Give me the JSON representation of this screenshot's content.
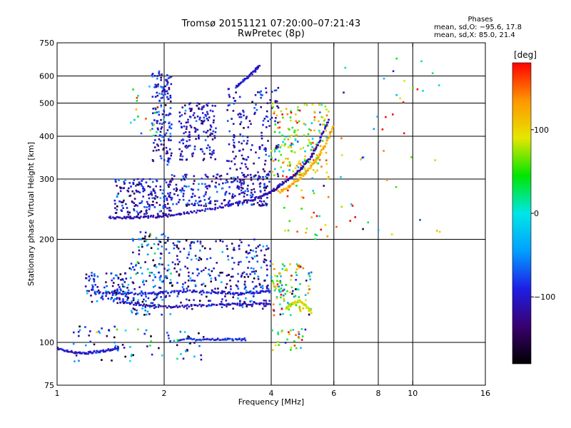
{
  "header": {
    "title_line1": "Tromsø 20151121 07:20:00–07:21:43",
    "title_line2": "RwPretec (8p)"
  },
  "phases_info": {
    "title": "Phases",
    "line1": "mean, sd,O: −95.6, 17.8",
    "line2": "mean, sd,X:  85.0, 21.4"
  },
  "colorbar": {
    "title": "[deg]",
    "ticks": [
      {
        "value": 100,
        "label": "100"
      },
      {
        "value": 0,
        "label": "0"
      },
      {
        "value": -100,
        "label": "−100"
      }
    ],
    "range": [
      -180,
      180
    ],
    "colors": [
      "#000000",
      "#3a0070",
      "#1e1ee6",
      "#00a0ff",
      "#00e6e6",
      "#00e600",
      "#e6e600",
      "#ff9600",
      "#ff0000"
    ]
  },
  "chart_data": {
    "type": "scatter",
    "title": "Tromsø 20151121 07:20:00–07:21:43",
    "subtitle": "RwPretec (8p)",
    "xlabel": "Frequency [MHz]",
    "ylabel": "Stationary phase Virtual Height [km]",
    "x_scale": "log",
    "y_scale": "log",
    "xlim": [
      1,
      16
    ],
    "ylim": [
      75,
      750
    ],
    "x_ticks": [
      1,
      2,
      4,
      6,
      8,
      10,
      16
    ],
    "x_tick_labels": [
      "1",
      "2",
      "4",
      "6",
      "8",
      "10",
      "16"
    ],
    "y_ticks": [
      75,
      100,
      200,
      300,
      400,
      500,
      600,
      750
    ],
    "y_tick_labels": [
      "75",
      "100",
      "200",
      "300",
      "400",
      "500",
      "600",
      "750"
    ],
    "grid": true,
    "color_by": "phase [deg]",
    "traces": [
      {
        "x": [
          1.4,
          1.55,
          1.7,
          1.9,
          2.1,
          2.4,
          2.8,
          3.2,
          3.6,
          3.9,
          4.1,
          4.3,
          4.6,
          4.9,
          5.2,
          5.5,
          5.8
        ],
        "y": [
          232,
          231,
          232,
          233,
          235,
          240,
          247,
          255,
          263,
          272,
          280,
          292,
          305,
          325,
          350,
          390,
          450
        ],
        "phase": -110
      },
      {
        "x": [
          4.2,
          4.5,
          4.8,
          5.1,
          5.4,
          5.7,
          6.0
        ],
        "y": [
          275,
          285,
          300,
          320,
          345,
          380,
          430
        ],
        "phase": 120
      },
      {
        "x": [
          1.3,
          1.5,
          1.8,
          2.0,
          2.4,
          2.8,
          3.2,
          3.6,
          4.0
        ],
        "y": [
          140,
          139,
          139,
          140,
          141,
          140,
          139,
          140,
          141
        ],
        "phase": -95
      },
      {
        "x": [
          1.6,
          1.8,
          2.1,
          2.4,
          2.8,
          3.2,
          3.6,
          4.0
        ],
        "y": [
          130,
          128,
          127,
          128,
          129,
          129,
          130,
          130
        ],
        "phase": -105
      },
      {
        "x": [
          2.2,
          2.5,
          2.8,
          3.1,
          3.4
        ],
        "y": [
          102,
          102,
          102,
          102,
          102
        ],
        "phase": -85
      },
      {
        "x": [
          1.0,
          1.1,
          1.2,
          1.3,
          1.4,
          1.5
        ],
        "y": [
          96,
          94,
          93,
          94,
          95,
          97
        ],
        "phase": -100
      },
      {
        "x": [
          3.2,
          3.4,
          3.6,
          3.7
        ],
        "y": [
          560,
          590,
          620,
          640
        ],
        "phase": -100
      },
      {
        "x": [
          4.4,
          4.6,
          4.8,
          5.0,
          5.2
        ],
        "y": [
          125,
          130,
          132,
          128,
          122
        ],
        "phase": 90
      }
    ]
  },
  "scatter_clusters": [
    {
      "fx": [
        1.85,
        2.1
      ],
      "h": [
        330,
        620
      ],
      "n": 150,
      "ph": -100,
      "sd": 25
    },
    {
      "fx": [
        2.2,
        2.8
      ],
      "h": [
        340,
        500
      ],
      "n": 150,
      "ph": -100,
      "sd": 25
    },
    {
      "fx": [
        1.45,
        2.1
      ],
      "h": [
        236,
        300
      ],
      "n": 180,
      "ph": -105,
      "sd": 30
    },
    {
      "fx": [
        2.1,
        3.9
      ],
      "h": [
        250,
        310
      ],
      "n": 230,
      "ph": -100,
      "sd": 30
    },
    {
      "fx": [
        3.0,
        4.2
      ],
      "h": [
        290,
        560
      ],
      "n": 170,
      "ph": -100,
      "sd": 25
    },
    {
      "fx": [
        4.0,
        5.8
      ],
      "h": [
        300,
        500
      ],
      "n": 160,
      "ph": 70,
      "sd": 60
    },
    {
      "fx": [
        4.2,
        5.8
      ],
      "h": [
        200,
        480
      ],
      "n": 60,
      "ph": 80,
      "sd": 70
    },
    {
      "fx": [
        1.2,
        1.6
      ],
      "h": [
        130,
        160
      ],
      "n": 120,
      "ph": -90,
      "sd": 40
    },
    {
      "fx": [
        1.6,
        2.1
      ],
      "h": [
        120,
        210
      ],
      "n": 160,
      "ph": -80,
      "sd": 60
    },
    {
      "fx": [
        2.1,
        4.0
      ],
      "h": [
        125,
        200
      ],
      "n": 280,
      "ph": -100,
      "sd": 40
    },
    {
      "fx": [
        4.0,
        5.2
      ],
      "h": [
        120,
        170
      ],
      "n": 110,
      "ph": 40,
      "sd": 90
    },
    {
      "fx": [
        1.1,
        2.6
      ],
      "h": [
        88,
        112
      ],
      "n": 80,
      "ph": -80,
      "sd": 70
    },
    {
      "fx": [
        4.0,
        5.0
      ],
      "h": [
        95,
        110
      ],
      "n": 30,
      "ph": 60,
      "sd": 70
    },
    {
      "fx": [
        6.0,
        12.0
      ],
      "h": [
        200,
        680
      ],
      "n": 45,
      "ph": 60,
      "sd": 110
    },
    {
      "fx": [
        1.6,
        2.0
      ],
      "h": [
        400,
        560
      ],
      "n": 20,
      "ph": 60,
      "sd": 80
    }
  ]
}
